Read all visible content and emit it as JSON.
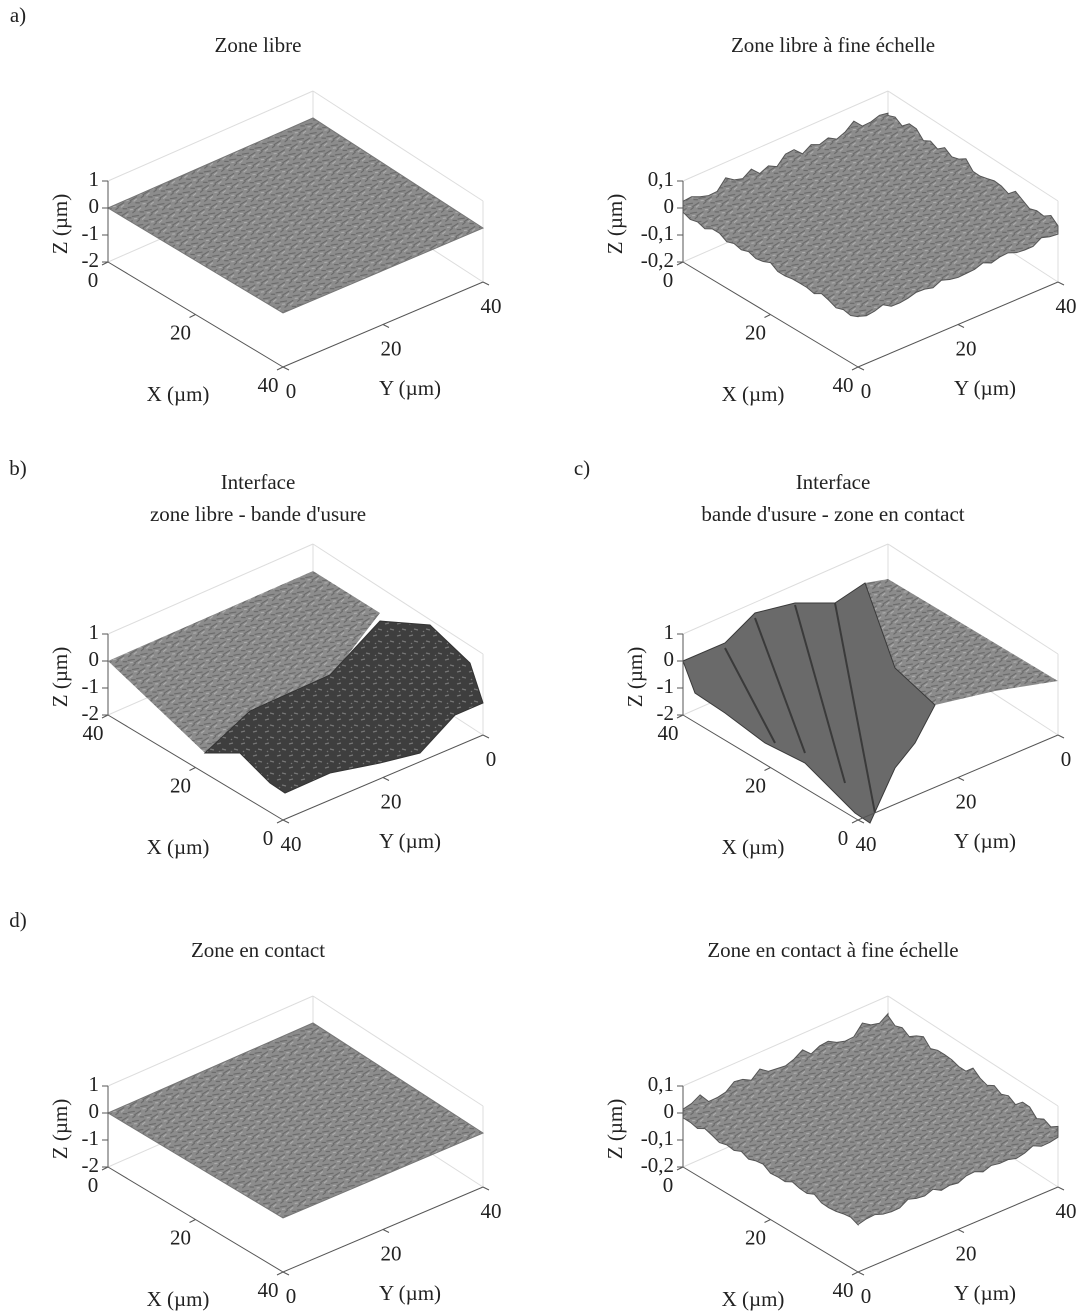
{
  "chart_data": [
    {
      "type": "surface",
      "label": "a)",
      "title": "Zone libre",
      "xlabel": "X (µm)",
      "ylabel": "Y (µm)",
      "zlabel": "Z (µm)",
      "xlim": [
        0,
        40
      ],
      "ylim": [
        0,
        40
      ],
      "zlim": [
        -2,
        1
      ],
      "xticks": [
        0,
        20,
        40
      ],
      "yticks": [
        0,
        20,
        40
      ],
      "zticks": [
        1,
        0,
        -1,
        -2
      ]
    },
    {
      "type": "surface",
      "title": "Zone libre à fine échelle",
      "xlabel": "X (µm)",
      "ylabel": "Y (µm)",
      "zlabel": "Z (µm)",
      "xlim": [
        0,
        40
      ],
      "ylim": [
        0,
        40
      ],
      "zlim": [
        -0.2,
        0.1
      ],
      "xticks": [
        0,
        20,
        40
      ],
      "yticks": [
        0,
        20,
        40
      ],
      "zticks": [
        {
          "value": 0.1,
          "label": "0,1"
        },
        0,
        {
          "value": -0.1,
          "label": "-0,1"
        },
        {
          "value": -0.2,
          "label": "-0,2"
        }
      ]
    },
    {
      "type": "surface",
      "label": "b)",
      "title": "Interface",
      "subtitle": "zone libre - bande d'usure",
      "xlabel": "X (µm)",
      "ylabel": "Y (µm)",
      "zlabel": "Z (µm)",
      "xlim": [
        40,
        0
      ],
      "ylim": [
        40,
        0
      ],
      "zlim": [
        -2,
        1
      ],
      "xticks": [
        40,
        20,
        0
      ],
      "yticks": [
        40,
        20,
        0
      ],
      "zticks": [
        1,
        0,
        -1,
        -2
      ]
    },
    {
      "type": "surface",
      "label": "c)",
      "title": "Interface",
      "subtitle": "bande d'usure - zone en contact",
      "xlabel": "X (µm)",
      "ylabel": "Y (µm)",
      "zlabel": "Z (µm)",
      "xlim": [
        40,
        0
      ],
      "ylim": [
        40,
        0
      ],
      "zlim": [
        -2,
        1
      ],
      "xticks": [
        40,
        20,
        0
      ],
      "yticks": [
        40,
        20,
        0
      ],
      "zticks": [
        1,
        0,
        -1,
        -2
      ]
    },
    {
      "type": "surface",
      "label": "d)",
      "title": "Zone en contact",
      "xlabel": "X (µm)",
      "ylabel": "Y (µm)",
      "zlabel": "Z (µm)",
      "xlim": [
        0,
        40
      ],
      "ylim": [
        0,
        40
      ],
      "zlim": [
        -2,
        1
      ],
      "xticks": [
        0,
        20,
        40
      ],
      "yticks": [
        0,
        20,
        40
      ],
      "zticks": [
        1,
        0,
        -1,
        -2
      ]
    },
    {
      "type": "surface",
      "title": "Zone en contact à fine échelle",
      "xlabel": "X (µm)",
      "ylabel": "Y (µm)",
      "zlabel": "Z (µm)",
      "xlim": [
        0,
        40
      ],
      "ylim": [
        0,
        40
      ],
      "zlim": [
        -0.2,
        0.1
      ],
      "xticks": [
        0,
        20,
        40
      ],
      "yticks": [
        0,
        20,
        40
      ],
      "zticks": [
        {
          "value": 0.1,
          "label": "0,1"
        },
        0,
        {
          "value": -0.1,
          "label": "-0,1"
        },
        {
          "value": -0.2,
          "label": "-0,2"
        }
      ]
    }
  ]
}
